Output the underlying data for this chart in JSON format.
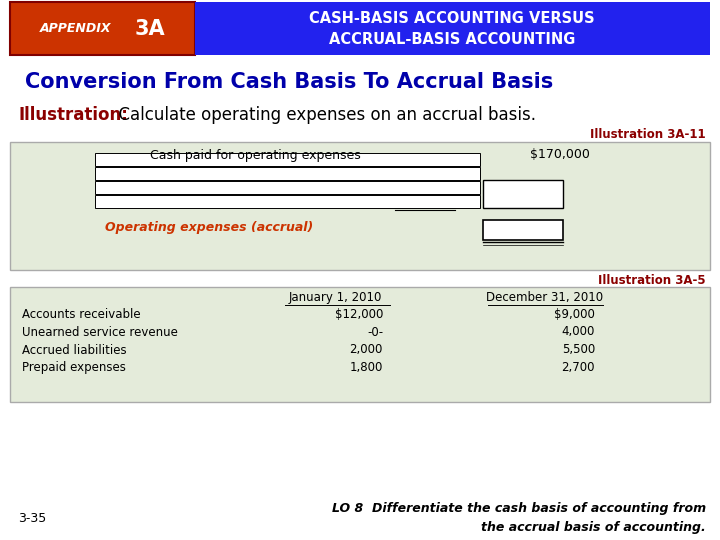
{
  "header_appendix_text": "APPENDIX 3A",
  "header_appendix_bg": "#cc3300",
  "header_appendix_fg": "#ffffff",
  "header_title_text": "CASH-BASIS ACCOUNTING VERSUS\nACCRUAL-BASIS ACCOUNTING",
  "header_title_bg": "#2222ee",
  "header_title_fg": "#ffffff",
  "section_title": "Conversion From Cash Basis To Accrual Basis",
  "section_title_color": "#0000aa",
  "illustration_label": "Illustration:",
  "illustration_label_color": "#8b0000",
  "illustration_text": "  Calculate operating expenses on an accrual basis.",
  "illustration_text_color": "#000000",
  "illus_ref_top": "Illustration 3A-11",
  "illus_ref_top_color": "#8b0000",
  "box1_bg": "#e4ebda",
  "box1_border": "#aaaaaa",
  "box1_cash_label": "Cash paid for operating expenses",
  "box1_cash_value": "$170,000",
  "box1_accrual_label": "Operating expenses (accrual)",
  "box1_accrual_label_color": "#cc3300",
  "illus_ref_bottom": "Illustration 3A-5",
  "illus_ref_bottom_color": "#8b0000",
  "box2_bg": "#e4ebda",
  "box2_border": "#aaaaaa",
  "box2_col1_header": "January 1, 2010",
  "box2_col2_header": "December 31, 2010",
  "box2_rows": [
    [
      "Accounts receivable",
      "$12,000",
      "$9,000"
    ],
    [
      "Unearned service revenue",
      "-0-",
      "4,000"
    ],
    [
      "Accrued liabilities",
      "2,000",
      "5,500"
    ],
    [
      "Prepaid expenses",
      "1,800",
      "2,700"
    ]
  ],
  "footer_left": "3-35",
  "footer_right_line1": "LO 8  Differentiate the cash basis of accounting from",
  "footer_right_line2": "the accrual basis of accounting.",
  "bg_color": "#ffffff"
}
